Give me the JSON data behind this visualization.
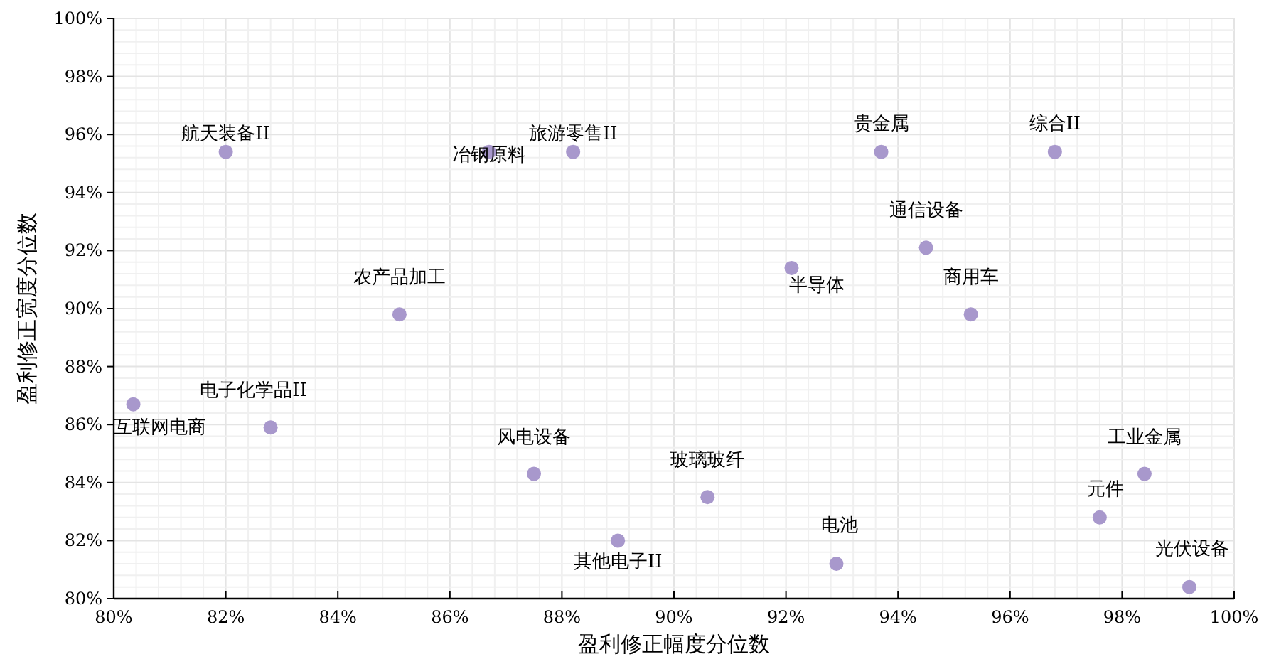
{
  "chart_data": {
    "type": "scatter",
    "xlabel": "盈利修正幅度分位数",
    "ylabel": "盈利修正宽度分位数",
    "series": [
      {
        "color": "#a898cc",
        "marker": "circle",
        "x": [
          82.0,
          86.7,
          88.2,
          93.7,
          96.8,
          94.5,
          92.1,
          95.3,
          85.1,
          80.35,
          82.8,
          87.5,
          90.6,
          98.4,
          97.6,
          89.0,
          92.9,
          99.2
        ],
        "values": [
          95.4,
          95.4,
          95.4,
          95.4,
          95.4,
          92.1,
          91.4,
          89.8,
          89.8,
          86.7,
          85.9,
          84.3,
          83.5,
          84.3,
          82.8,
          82.0,
          81.2,
          80.4
        ]
      }
    ],
    "annotations": [
      {
        "text": "航天装备II",
        "x": 82.0,
        "y": 95.4
      },
      {
        "text": "冶钢原料",
        "x": 86.7,
        "y": 95.4
      },
      {
        "text": "旅游零售II",
        "x": 88.2,
        "y": 95.4
      },
      {
        "text": "贵金属",
        "x": 93.7,
        "y": 95.4
      },
      {
        "text": "综合II",
        "x": 96.8,
        "y": 95.4
      },
      {
        "text": "通信设备",
        "x": 94.5,
        "y": 92.1
      },
      {
        "text": "半导体",
        "x": 92.1,
        "y": 91.4
      },
      {
        "text": "商用车",
        "x": 95.3,
        "y": 89.8
      },
      {
        "text": "农产品加工",
        "x": 85.1,
        "y": 89.8
      },
      {
        "text": "互联网电商",
        "x": 80.35,
        "y": 86.7
      },
      {
        "text": "电子化学品II",
        "x": 82.8,
        "y": 85.9
      },
      {
        "text": "风电设备",
        "x": 87.5,
        "y": 84.3
      },
      {
        "text": "玻璃玻纤",
        "x": 90.6,
        "y": 83.5
      },
      {
        "text": "工业金属",
        "x": 98.4,
        "y": 84.3
      },
      {
        "text": "元件",
        "x": 97.6,
        "y": 82.8
      },
      {
        "text": "其他电子II",
        "x": 89.0,
        "y": 82.0
      },
      {
        "text": "电池",
        "x": 92.9,
        "y": 81.2
      },
      {
        "text": "光伏设备",
        "x": 99.2,
        "y": 80.4
      }
    ],
    "xlim": [
      80,
      100
    ],
    "xticks": [
      {
        "value": 80,
        "label": "80%"
      },
      {
        "value": 82,
        "label": "82%"
      },
      {
        "value": 84,
        "label": "84%"
      },
      {
        "value": 86,
        "label": "86%"
      },
      {
        "value": 88,
        "label": "88%"
      },
      {
        "value": 90,
        "label": "90%"
      },
      {
        "value": 92,
        "label": "92%"
      },
      {
        "value": 94,
        "label": "94%"
      },
      {
        "value": 96,
        "label": "96%"
      },
      {
        "value": 98,
        "label": "98%"
      },
      {
        "value": 100,
        "label": "100%"
      }
    ],
    "ylim": [
      80,
      100
    ],
    "yticks": [
      {
        "value": 80,
        "label": "80%"
      },
      {
        "value": 82,
        "label": "82%"
      },
      {
        "value": 84,
        "label": "84%"
      },
      {
        "value": 86,
        "label": "86%"
      },
      {
        "value": 88,
        "label": "88%"
      },
      {
        "value": 90,
        "label": "90%"
      },
      {
        "value": 92,
        "label": "92%"
      },
      {
        "value": 94,
        "label": "94%"
      },
      {
        "value": 96,
        "label": "96%"
      },
      {
        "value": 98,
        "label": "98%"
      },
      {
        "value": 100,
        "label": "100%"
      }
    ],
    "grid": true
  }
}
